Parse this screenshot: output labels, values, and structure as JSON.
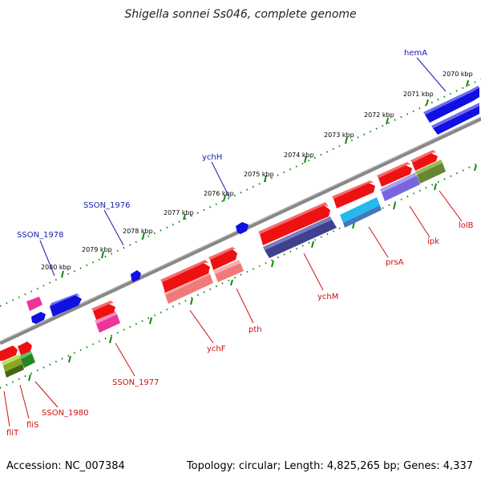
{
  "title": "Shigella sonnei Ss046, complete genome",
  "accession": "Accession: NC_007384",
  "summary": "Topology: circular; Length: 4,825,265 bp; Genes: 4,337",
  "scale_labels": [
    "2070 kbp",
    "2071 kbp",
    "2072 kbp",
    "2073 kbp",
    "2074 kbp",
    "2075 kbp",
    "2076 kbp",
    "2077 kbp",
    "2078 kbp",
    "2079 kbp",
    "2080 kbp"
  ],
  "top_gene_labels": [
    "hemA",
    "ychH",
    "SSON_1976",
    "SSON_1978"
  ],
  "bottom_gene_labels": [
    "lolB",
    "ipk",
    "prsA",
    "ychM",
    "pth",
    "ychF",
    "SSON_1977",
    "SSON_1980",
    "fliS",
    "fliT"
  ],
  "colors": {
    "blue_gene": "#1010e0",
    "red_gene": "#ee1111",
    "pink_gene": "#ee3399",
    "light_red_gene": "#f07a7a",
    "navy_gene": "#404090",
    "cyan_gene": "#22bbee",
    "steel_gene": "#4477bb",
    "lavender_gene": "#7766dd",
    "olive_gene": "#668833",
    "green_gene": "#228822",
    "label_blue": "#1a1ab0",
    "label_red": "#cc1111",
    "scale_tick": "#118811",
    "backbone": "#888888"
  }
}
